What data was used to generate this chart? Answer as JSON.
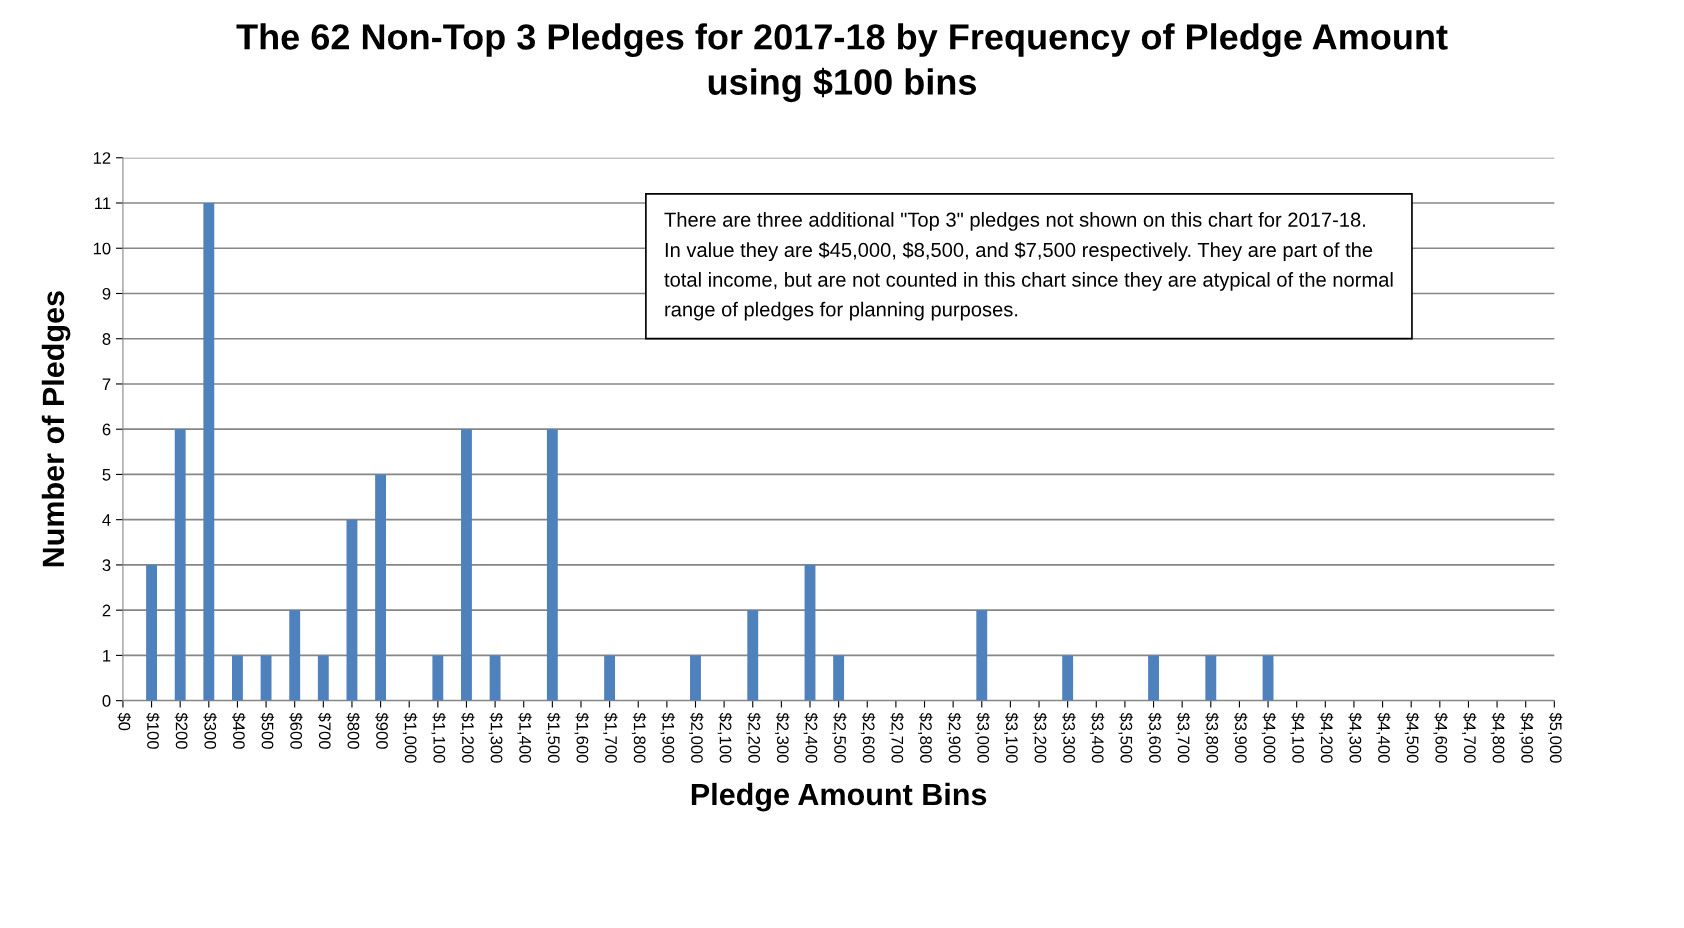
{
  "chart_data": {
    "type": "bar",
    "title": "The 62 Non-Top 3 Pledges for 2017-18 by Frequency of Pledge Amount\nusing $100 bins",
    "xlabel": "Pledge Amount Bins",
    "ylabel": "Number of Pledges",
    "categories": [
      "$0",
      "$100",
      "$200",
      "$300",
      "$400",
      "$500",
      "$600",
      "$700",
      "$800",
      "$900",
      "$1,000",
      "$1,100",
      "$1,200",
      "$1,300",
      "$1,400",
      "$1,500",
      "$1,600",
      "$1,700",
      "$1,800",
      "$1,900",
      "$2,000",
      "$2,100",
      "$2,200",
      "$2,300",
      "$2,400",
      "$2,500",
      "$2,600",
      "$2,700",
      "$2,800",
      "$2,900",
      "$3,000",
      "$3,100",
      "$3,200",
      "$3,300",
      "$3,400",
      "$3,500",
      "$3,600",
      "$3,700",
      "$3,800",
      "$3,900",
      "$4,000",
      "$4,100",
      "$4,200",
      "$4,300",
      "$4,400",
      "$4,500",
      "$4,600",
      "$4,700",
      "$4,800",
      "$4,900",
      "$5,000"
    ],
    "values": [
      0,
      3,
      6,
      11,
      1,
      1,
      2,
      1,
      4,
      5,
      0,
      1,
      6,
      1,
      0,
      6,
      0,
      1,
      0,
      0,
      1,
      0,
      2,
      0,
      3,
      1,
      0,
      0,
      0,
      0,
      2,
      0,
      0,
      1,
      0,
      0,
      1,
      0,
      1,
      0,
      1,
      0,
      0,
      0,
      0,
      0,
      0,
      0,
      0,
      0,
      0
    ],
    "color": "#4f81bd",
    "ylim": [
      0,
      12
    ],
    "yticks": [
      0,
      1,
      2,
      3,
      4,
      5,
      6,
      7,
      8,
      9,
      10,
      11,
      12
    ],
    "grid": "y",
    "annotations": [
      "There are three additional \"Top 3\" pledges not shown on this chart for 2017-18.\nIn value they are $45,000, $8,500, and $7,500 respectively. They are part of the\ntotal income, but are not counted in this chart since they are atypical of the normal\nrange of pledges for planning purposes."
    ]
  }
}
